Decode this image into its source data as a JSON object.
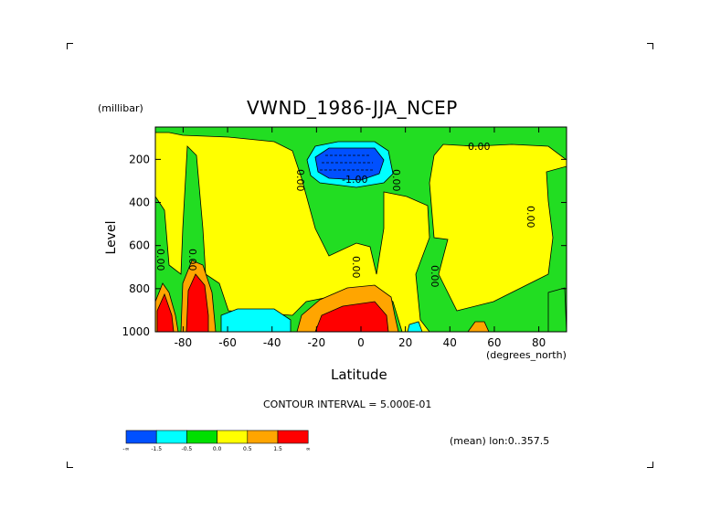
{
  "chart_data": {
    "type": "heatmap",
    "title": "VWND_1986-JJA_NCEP",
    "units_label": "(millibar)",
    "ylabel": "Level",
    "xlabel": "Latitude",
    "xunits": "(degrees_north)",
    "xlim": [
      -92.5,
      92.5
    ],
    "ylim": [
      1000,
      50
    ],
    "x_ticks": [
      "-80",
      "-60",
      "-40",
      "-20",
      "0",
      "20",
      "40",
      "60",
      "80"
    ],
    "x_tick_values": [
      -80,
      -60,
      -40,
      -20,
      0,
      20,
      40,
      60,
      80
    ],
    "y_ticks": [
      "200",
      "400",
      "600",
      "800",
      "1000"
    ],
    "y_tick_values": [
      200,
      400,
      600,
      800,
      1000
    ],
    "contour_interval_text": "CONTOUR INTERVAL = 5.000E-01",
    "subset_text": "(mean) lon:0..357.5",
    "contour_labels": [
      "0.00",
      "-1.00",
      "0.00",
      "0.00",
      "0.00",
      "0.00",
      "0.00",
      "0.00",
      "0.00"
    ],
    "colorbar": {
      "colors": [
        "#0050ff",
        "#00ffff",
        "#00e000",
        "#ffff00",
        "#ffa500",
        "#ff0000"
      ],
      "tick_labels": [
        "-∞",
        "-1.5",
        "-0.5",
        "0.0",
        "0.5",
        "1.5",
        "∞"
      ]
    },
    "colors": {
      "yellow": "#ffff00",
      "green": "#22dd22",
      "cyan": "#00ffff",
      "blue": "#0050ff",
      "orange": "#ffa500",
      "red": "#ff0000"
    }
  }
}
